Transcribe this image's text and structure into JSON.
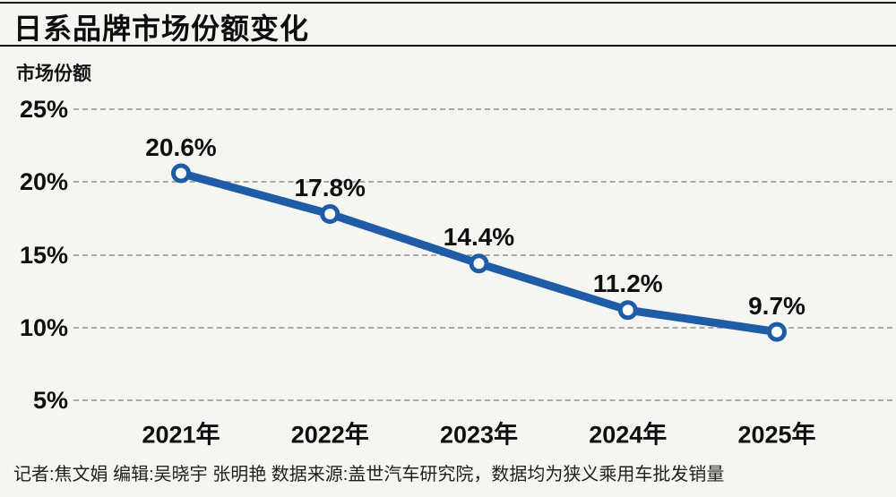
{
  "header": {
    "title": "日系品牌市场份额变化"
  },
  "chart_data": {
    "type": "line",
    "title": "日系品牌市场份额变化",
    "ylabel": "市场份额",
    "xlabel": "",
    "categories": [
      "2021年",
      "2022年",
      "2023年",
      "2024年",
      "2025年"
    ],
    "values": [
      20.6,
      17.8,
      14.4,
      11.2,
      9.7
    ],
    "data_labels": [
      "20.6%",
      "17.8%",
      "14.4%",
      "11.2%",
      "9.7%"
    ],
    "y_ticks": [
      {
        "label": "25%",
        "value": 25
      },
      {
        "label": "20%",
        "value": 20
      },
      {
        "label": "15%",
        "value": 15
      },
      {
        "label": "10%",
        "value": 10
      },
      {
        "label": "5%",
        "value": 5
      }
    ],
    "ylim": [
      5,
      25
    ],
    "grid": "horizontal-dashed",
    "legend_position": "none",
    "colors": {
      "line": "#1e5ca6",
      "marker_fill": "#ffffff",
      "marker_stroke": "#1e5ca6",
      "grid": "#a9a9a9",
      "text": "#0f0f0f",
      "background": "#f5f5f2"
    }
  },
  "footer": {
    "credit": "记者:焦文娟  编辑:吴晓宇 张明艳  数据来源:盖世汽车研究院，数据均为狭义乘用车批发销量"
  }
}
